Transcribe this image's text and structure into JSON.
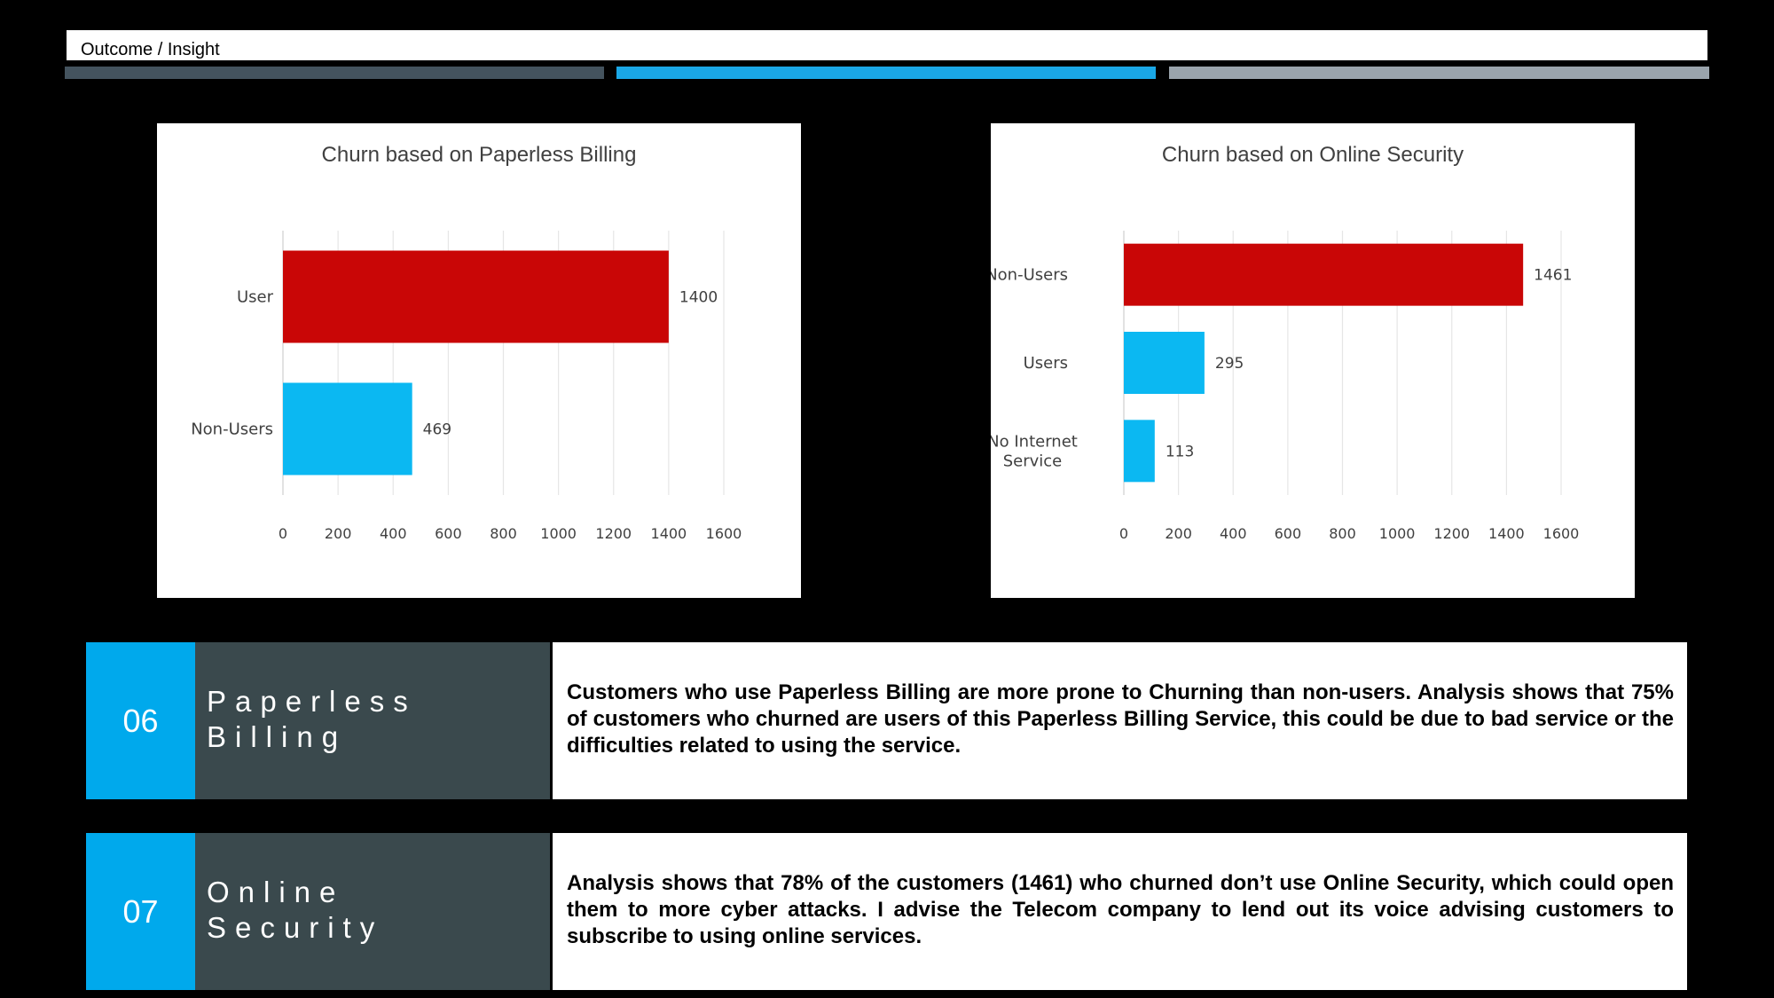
{
  "header": {
    "title": "Outcome / Insight"
  },
  "colors": {
    "accent_blue": "#00a9ec",
    "bar_red": "#c90606",
    "bar_blue": "#0bb8f2",
    "dark_panel": "#3a494d"
  },
  "chart_data": [
    {
      "type": "bar",
      "orientation": "horizontal",
      "title": "Churn based on Paperless Billing",
      "categories": [
        "User",
        "Non-Users"
      ],
      "values": [
        1400,
        469
      ],
      "bar_colors": [
        "#c90606",
        "#0bb8f2"
      ],
      "xlim": [
        0,
        1600
      ],
      "xticks": [
        "0",
        "200",
        "400",
        "600",
        "800",
        "1000",
        "1200",
        "1400",
        "1600"
      ],
      "grid": true,
      "data_labels": [
        "1400",
        "469"
      ]
    },
    {
      "type": "bar",
      "orientation": "horizontal",
      "title": "Churn based on Online Security",
      "categories": [
        "Non-Users",
        "Users",
        "No Internet Service"
      ],
      "values": [
        1461,
        295,
        113
      ],
      "bar_colors": [
        "#c90606",
        "#0bb8f2",
        "#0bb8f2"
      ],
      "xlim": [
        0,
        1600
      ],
      "xticks": [
        "0",
        "200",
        "400",
        "600",
        "800",
        "1000",
        "1200",
        "1400",
        "1600"
      ],
      "grid": true,
      "data_labels": [
        "1461",
        "295",
        "113"
      ]
    }
  ],
  "insights": [
    {
      "number": "06",
      "label_line1": "Paperless",
      "label_line2": "Billing",
      "text": "Customers who use Paperless Billing are more prone to Churning than non-users. Analysis shows that 75% of customers who churned are users of this Paperless Billing Service, this could be due to bad service or the difficulties related to using the service."
    },
    {
      "number": "07",
      "label_line1": "Online",
      "label_line2": "Security",
      "text": "Analysis shows that 78% of the customers (1461) who churned don’t use Online Security, which could open them to more cyber attacks. I advise the Telecom company to lend out its voice advising customers to subscribe to using online services."
    }
  ]
}
